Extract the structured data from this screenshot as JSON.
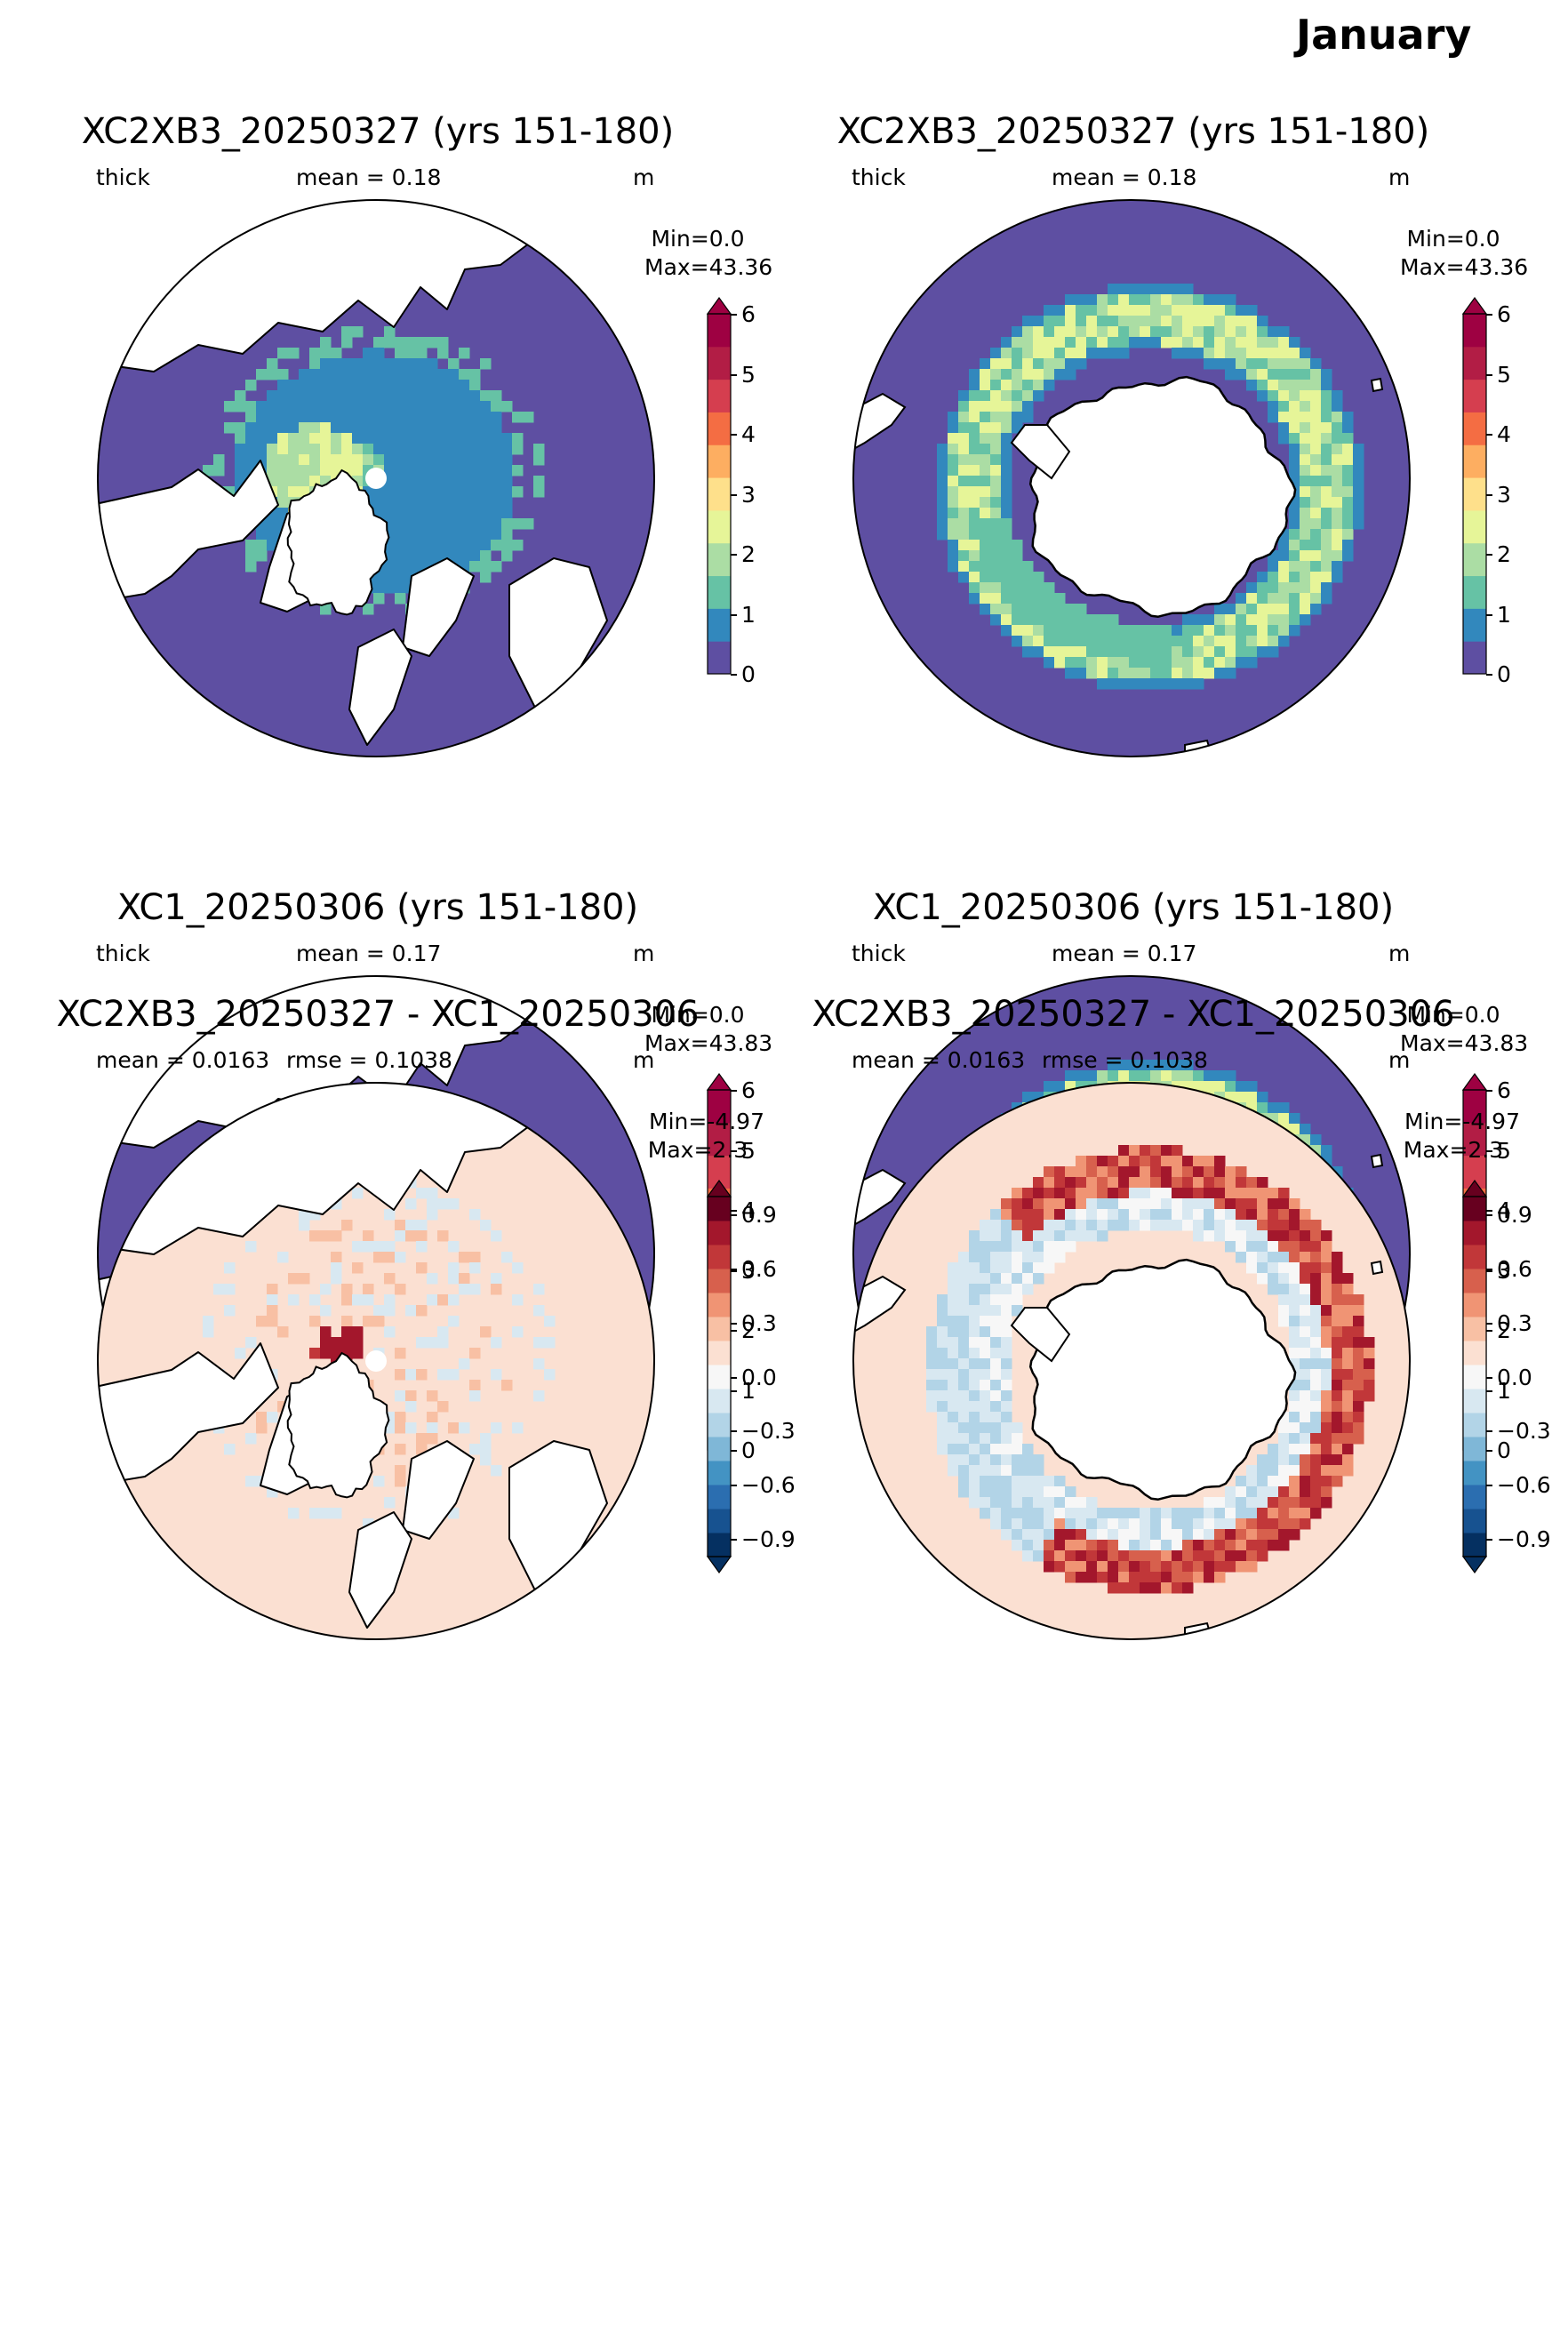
{
  "figure": {
    "month": "January",
    "colors": {
      "ocean_zero": "#5e4fa2",
      "land": "#ffffff",
      "coast": "#000000",
      "diff_background": "#fbe0d2"
    },
    "panels": [
      {
        "title": "XC2XB3_20250327 (yrs 151-180)",
        "subtitle": {
          "left": "thick",
          "center": "mean = 0.18",
          "right": "m"
        },
        "min": "Min=0.0",
        "max": "Max=43.36",
        "hemisphere": "north",
        "kind": "field"
      },
      {
        "title": "XC2XB3_20250327 (yrs 151-180)",
        "subtitle": {
          "left": "thick",
          "center": "mean = 0.18",
          "right": "m"
        },
        "min": "Min=0.0",
        "max": "Max=43.36",
        "hemisphere": "south",
        "kind": "field"
      },
      {
        "title": "XC1_20250306 (yrs 151-180)",
        "subtitle": {
          "left": "thick",
          "center": "mean = 0.17",
          "right": "m"
        },
        "min": "Min=0.0",
        "max": "Max=43.83",
        "hemisphere": "north",
        "kind": "field"
      },
      {
        "title": "XC1_20250306 (yrs 151-180)",
        "subtitle": {
          "left": "thick",
          "center": "mean = 0.17",
          "right": "m"
        },
        "min": "Min=0.0",
        "max": "Max=43.83",
        "hemisphere": "south",
        "kind": "field"
      },
      {
        "title": "XC2XB3_20250327 - XC1_20250306",
        "subtitle": {
          "left": "mean = 0.0163",
          "center": "rmse = 0.1038",
          "right": "m"
        },
        "min": "Min=-4.97",
        "max": "Max=2.3",
        "hemisphere": "north",
        "kind": "diff"
      },
      {
        "title": "XC2XB3_20250327 - XC1_20250306",
        "subtitle": {
          "left": "mean = 0.0163",
          "center": "rmse = 0.1038",
          "right": "m"
        },
        "min": "Min=-4.97",
        "max": "Max=2.3",
        "hemisphere": "south",
        "kind": "diff"
      }
    ],
    "colorbars": {
      "field": {
        "ticks": [
          "0",
          "1",
          "2",
          "3",
          "4",
          "5",
          "6"
        ],
        "colors": [
          "#5e4fa2",
          "#3288bd",
          "#66c2a5",
          "#abdda4",
          "#e6f598",
          "#fee08b",
          "#fdae61",
          "#f46d43",
          "#d53e4f",
          "#b21d45",
          "#9e0142"
        ],
        "extend": "max"
      },
      "diff": {
        "ticks": [
          "0.9",
          "0.6",
          "0.3",
          "0.0",
          "−0.3",
          "−0.6",
          "−0.9"
        ],
        "colors": [
          "#053061",
          "#175290",
          "#2b6eb0",
          "#4393c3",
          "#7fb7d7",
          "#b2d4e7",
          "#d8e8f1",
          "#f7f7f7",
          "#fbe0d2",
          "#f8c0a4",
          "#f09474",
          "#d7604d",
          "#c13739",
          "#a3172c",
          "#67001f"
        ],
        "extend": "both"
      }
    }
  }
}
